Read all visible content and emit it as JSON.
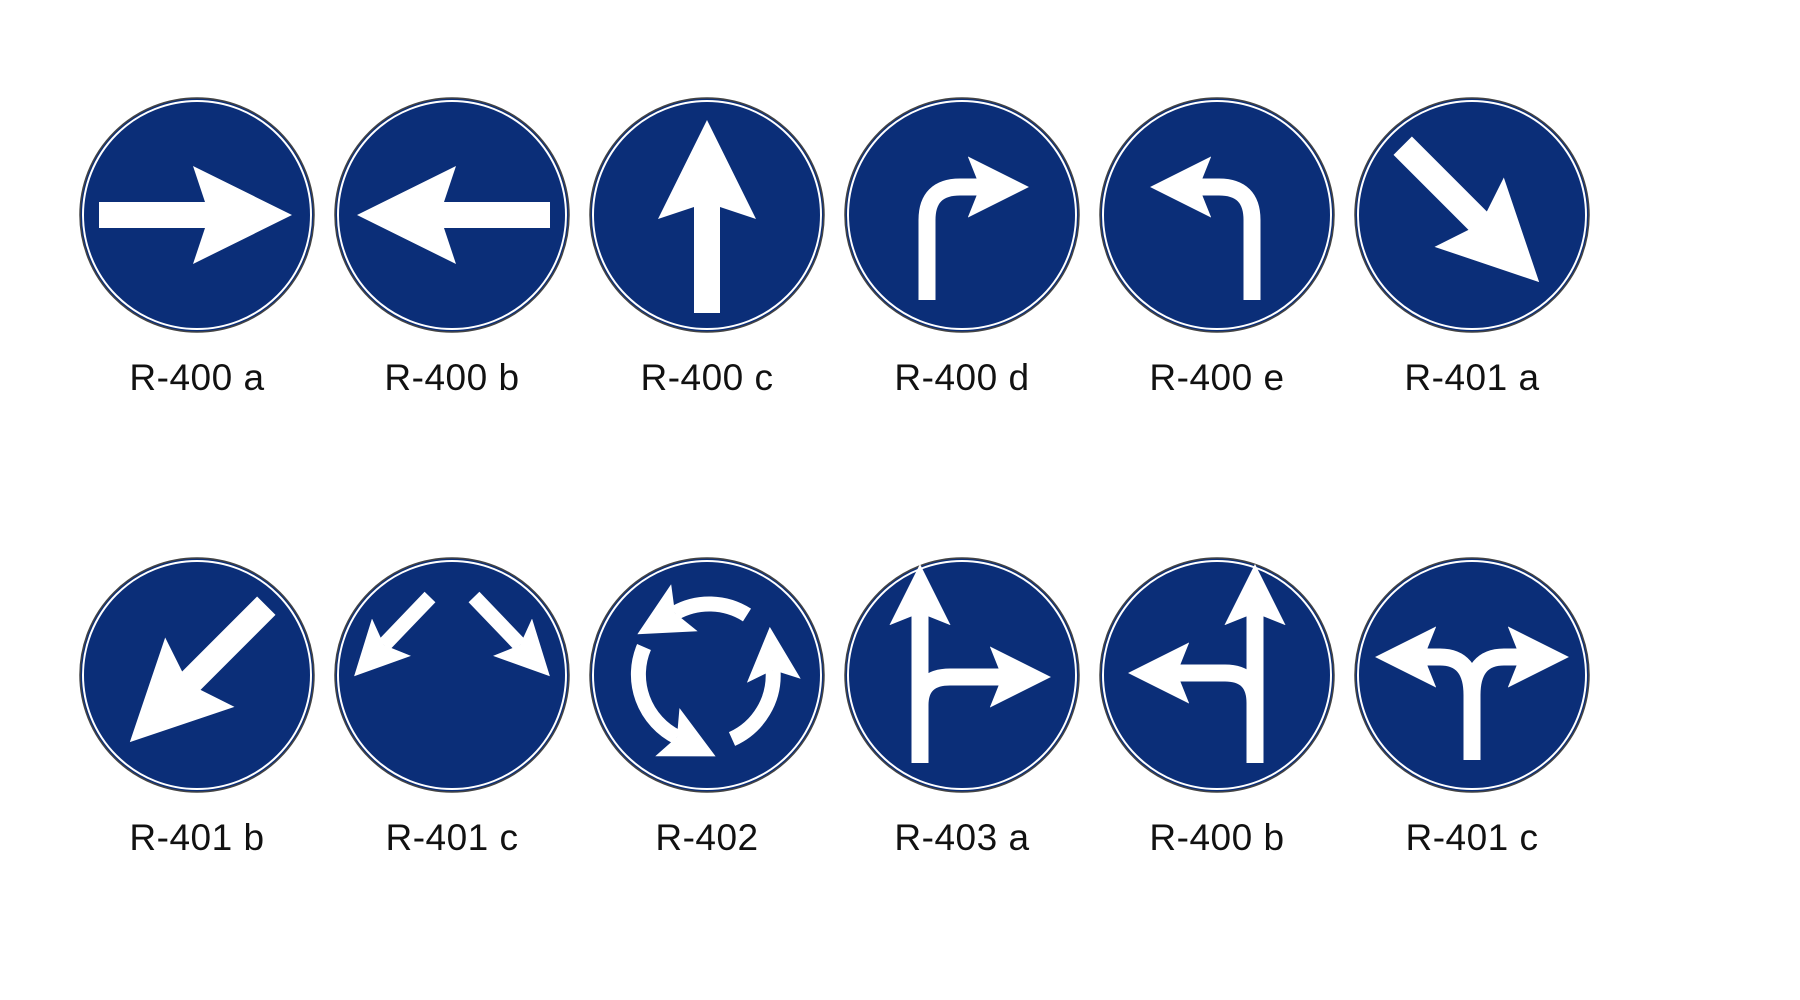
{
  "colors": {
    "sign_fill": "#0b2e78",
    "sign_symbol": "#ffffff",
    "sign_rim": "#444444",
    "label_text": "#111111"
  },
  "signs": [
    {
      "label": "R-400 a",
      "icon": "arrow-right-icon"
    },
    {
      "label": "R-400 b",
      "icon": "arrow-left-icon"
    },
    {
      "label": "R-400 c",
      "icon": "arrow-up-icon"
    },
    {
      "label": "R-400 d",
      "icon": "turn-right-icon"
    },
    {
      "label": "R-400 e",
      "icon": "turn-left-icon"
    },
    {
      "label": "R-401 a",
      "icon": "arrow-down-right-icon"
    },
    {
      "label": "R-401 b",
      "icon": "arrow-down-left-icon"
    },
    {
      "label": "R-401 c",
      "icon": "split-diagonal-arrows-icon"
    },
    {
      "label": "R-402",
      "icon": "roundabout-icon"
    },
    {
      "label": "R-403 a",
      "icon": "straight-or-right-icon"
    },
    {
      "label": "R-400 b",
      "icon": "straight-or-left-icon"
    },
    {
      "label": "R-401 c",
      "icon": "fork-left-right-icon"
    }
  ]
}
